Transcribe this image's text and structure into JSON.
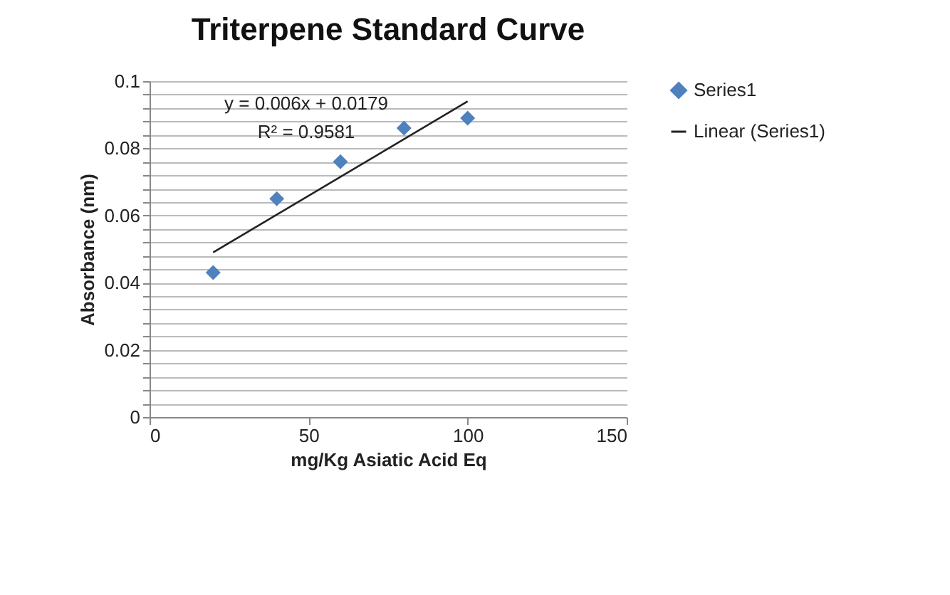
{
  "chart_data": {
    "type": "scatter",
    "title": "Triterpene Standard Curve",
    "xlabel": "mg/Kg Asiatic Acid Eq",
    "ylabel": "Absorbance (nm)",
    "x": [
      20,
      40,
      60,
      80,
      100
    ],
    "series": [
      {
        "name": "Series1",
        "color": "#4f81bd",
        "values": [
          0.043,
          0.065,
          0.076,
          0.086,
          0.089
        ],
        "marker": "diamond"
      },
      {
        "name": "Linear (Series1)",
        "type": "line",
        "color": "#222222",
        "x": [
          20,
          100
        ],
        "values": [
          0.049,
          0.094
        ],
        "marker": "none"
      }
    ],
    "xlim": [
      0,
      150
    ],
    "xticks": [
      0,
      50,
      100,
      150
    ],
    "ylim": [
      0,
      0.1
    ],
    "yticks": [
      0,
      {
        "value": 0.004,
        "label": null
      },
      {
        "value": 0.008,
        "label": null
      },
      {
        "value": 0.012,
        "label": null
      },
      {
        "value": 0.016,
        "label": null
      },
      0.02,
      {
        "value": 0.024,
        "label": null
      },
      {
        "value": 0.028,
        "label": null
      },
      {
        "value": 0.032,
        "label": null
      },
      {
        "value": 0.036,
        "label": null
      },
      0.04,
      {
        "value": 0.044,
        "label": null
      },
      {
        "value": 0.048,
        "label": null
      },
      {
        "value": 0.052,
        "label": null
      },
      {
        "value": 0.056,
        "label": null
      },
      0.06,
      {
        "value": 0.064,
        "label": null
      },
      {
        "value": 0.068,
        "label": null
      },
      {
        "value": 0.072,
        "label": null
      },
      {
        "value": 0.076,
        "label": null
      },
      0.08,
      {
        "value": 0.084,
        "label": null
      },
      {
        "value": 0.088,
        "label": null
      },
      {
        "value": 0.092,
        "label": null
      },
      {
        "value": 0.096,
        "label": null
      },
      0.1
    ],
    "grid": "y",
    "legend": "right",
    "annotations": [
      "y = 0.006x + 0.0179",
      "R² = 0.9581"
    ]
  }
}
